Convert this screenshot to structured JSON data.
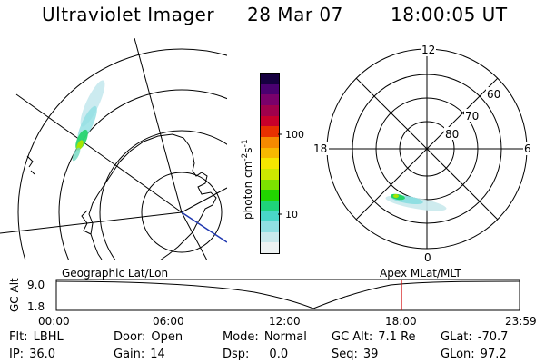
{
  "header": {
    "instrument": "Ultraviolet Imager",
    "date": "28 Mar 07",
    "time": "18:00:05 UT"
  },
  "colorbar": {
    "label": "photon cm⁻²s⁻¹",
    "label_main": "photon cm",
    "label_sup1": "-2",
    "label_mid": "s",
    "label_sup2": "-1",
    "ticks": [
      "100",
      "10"
    ],
    "colors": [
      "#eef3f3",
      "#c9e9ec",
      "#8fdfe2",
      "#49d6c8",
      "#1fd27a",
      "#22d400",
      "#7ce200",
      "#cde800",
      "#f6e600",
      "#f8b800",
      "#f58a00",
      "#e83000",
      "#c8002a",
      "#a0004c",
      "#7a006b",
      "#4a0070",
      "#160040"
    ]
  },
  "geo_map": {
    "label": "Geographic Lat/Lon"
  },
  "polar_plot": {
    "label": "Apex MLat/MLT",
    "mlt_labels": [
      "12",
      "18",
      "6",
      "0"
    ],
    "mlat_labels": [
      "60",
      "70",
      "80"
    ]
  },
  "altitude_plot": {
    "ylabel": "GC Alt",
    "yticks": [
      "9.0",
      "1.8"
    ],
    "xticks": [
      "00:00",
      "06:00",
      "12:00",
      "18:00",
      "23:59"
    ],
    "current_time_marker": "18:00"
  },
  "status": {
    "flt": {
      "label": "Flt:",
      "value": "LBHL"
    },
    "ip": {
      "label": "IP:",
      "value": "36.0"
    },
    "door": {
      "label": "Door:",
      "value": "Open"
    },
    "gain": {
      "label": "Gain:",
      "value": "14"
    },
    "mode": {
      "label": "Mode:",
      "value": "Normal"
    },
    "dsp": {
      "label": "Dsp:",
      "value": "0.0"
    },
    "gcalt": {
      "label": "GC Alt:",
      "value": "7.1 Re"
    },
    "seq": {
      "label": "Seq:",
      "value": "39"
    },
    "glat": {
      "label": "GLat:",
      "value": "-70.7"
    },
    "glon": {
      "label": "GLon:",
      "value": "97.2"
    }
  }
}
